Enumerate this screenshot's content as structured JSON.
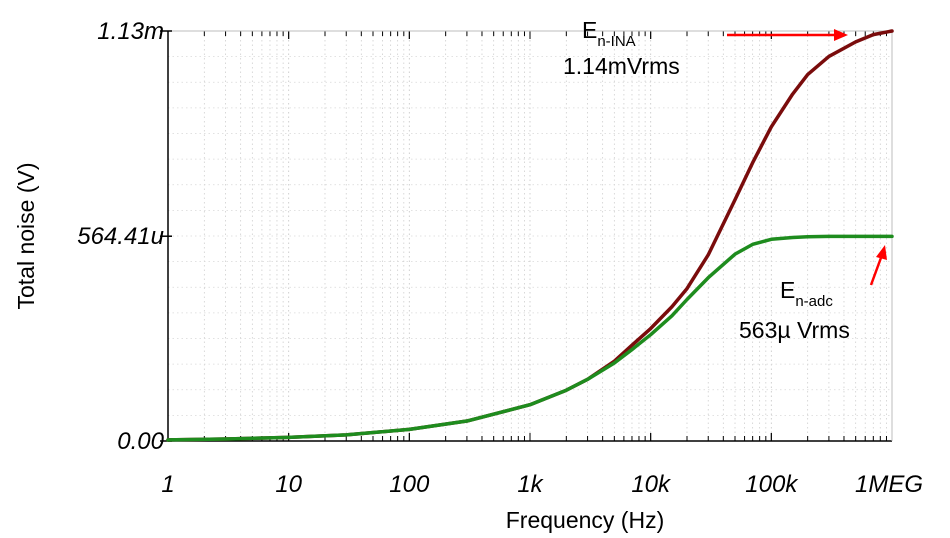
{
  "chart_data": {
    "type": "line",
    "xlabel": "Frequency (Hz)",
    "ylabel": "Total noise (V)",
    "x_scale": "log",
    "xlim": [
      1,
      1000000
    ],
    "ylim": [
      0,
      0.00113
    ],
    "x_tick_labels": [
      "1",
      "10",
      "100",
      "1k",
      "10k",
      "100k",
      "1MEG"
    ],
    "x_tick_values": [
      1,
      10,
      100,
      1000,
      10000,
      100000,
      1000000
    ],
    "y_tick_labels": [
      "0.00",
      "564.41u",
      "1.13m"
    ],
    "y_tick_values": [
      0,
      0.00056441,
      0.00113
    ],
    "grid": true,
    "series": [
      {
        "color": "#7a0c0c",
        "x": [
          1,
          3,
          10,
          30,
          100,
          300,
          1000,
          2000,
          3000,
          5000,
          7000,
          10000,
          15000,
          20000,
          30000,
          50000,
          70000,
          100000,
          150000,
          200000,
          300000,
          500000,
          700000,
          1000000
        ],
        "y": [
          3e-06,
          5.5e-06,
          1e-05,
          1.7e-05,
          3.2e-05,
          5.5e-05,
          0.0001,
          0.00014,
          0.00017,
          0.00022,
          0.000264,
          0.00031,
          0.00037,
          0.00042,
          0.000513,
          0.000665,
          0.000767,
          0.000866,
          0.000956,
          0.00101,
          0.00106,
          0.0011,
          0.00112,
          0.00113
        ]
      },
      {
        "color": "#1e8c1e",
        "x": [
          1,
          3,
          10,
          30,
          100,
          300,
          1000,
          2000,
          3000,
          5000,
          7000,
          10000,
          15000,
          20000,
          30000,
          50000,
          70000,
          100000,
          150000,
          200000,
          300000,
          500000,
          700000,
          1000000
        ],
        "y": [
          3e-06,
          5.5e-06,
          1e-05,
          1.7e-05,
          3.2e-05,
          5.5e-05,
          0.0001,
          0.00014,
          0.00017,
          0.000215,
          0.000252,
          0.000293,
          0.000345,
          0.00039,
          0.00045,
          0.000515,
          0.000542,
          0.000556,
          0.000561,
          0.000563,
          0.000564,
          0.000564,
          0.000564,
          0.000564
        ]
      }
    ],
    "annotations": [
      {
        "main": "E",
        "sub": "n-INA",
        "value": "1.14mVrms",
        "arrow_color": "#ff0000"
      },
      {
        "main": "E",
        "sub": "n-adc",
        "value": "563µ Vrms",
        "arrow_color": "#ff0000"
      }
    ]
  }
}
